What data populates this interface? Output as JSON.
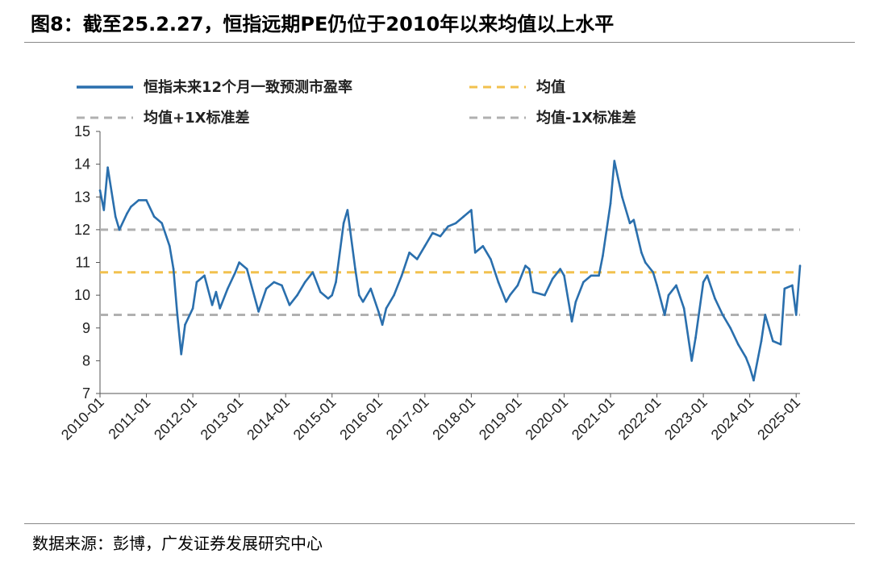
{
  "header": {
    "title": "图8：截至25.2.27，恒指远期PE仍位于2010年以来均值以上水平"
  },
  "footer": {
    "source": "数据来源：彭博，广发证券发展研究中心"
  },
  "colors": {
    "series": "#2a6fad",
    "mean": "#f2c14e",
    "band": "#b0b0b0"
  },
  "chart_data": {
    "type": "line",
    "title": "图8：截至25.2.27，恒指远期PE仍位于2010年以来均值以上水平",
    "xlabel": "",
    "ylabel": "",
    "ylim": [
      7,
      15
    ],
    "yticks": [
      "7",
      "8",
      "9",
      "10",
      "11",
      "12",
      "13",
      "14",
      "15"
    ],
    "xticks": [
      "2010-01",
      "2011-01",
      "2012-01",
      "2013-01",
      "2014-01",
      "2015-01",
      "2016-01",
      "2017-01",
      "2018-01",
      "2019-01",
      "2020-01",
      "2021-01",
      "2022-01",
      "2023-01",
      "2024-01",
      "2025-01"
    ],
    "grid": false,
    "legend": {
      "placement": "top",
      "entries": [
        "恒指未来12个月一致预测市盈率",
        "均值",
        "均值+1X标准差",
        "均值-1X标准差"
      ]
    },
    "series": [
      {
        "name": "恒指未来12个月一致预测市盈率",
        "x": [
          "2010-01",
          "2010-02",
          "2010-03",
          "2010-05",
          "2010-06",
          "2010-08",
          "2010-09",
          "2010-11",
          "2011-01",
          "2011-03",
          "2011-05",
          "2011-07",
          "2011-08",
          "2011-09",
          "2011-10",
          "2011-11",
          "2012-01",
          "2012-02",
          "2012-04",
          "2012-06",
          "2012-07",
          "2012-08",
          "2012-10",
          "2012-12",
          "2013-01",
          "2013-03",
          "2013-06",
          "2013-08",
          "2013-10",
          "2013-12",
          "2014-02",
          "2014-04",
          "2014-06",
          "2014-08",
          "2014-10",
          "2014-12",
          "2015-01",
          "2015-02",
          "2015-04",
          "2015-05",
          "2015-07",
          "2015-08",
          "2015-09",
          "2015-11",
          "2016-01",
          "2016-02",
          "2016-03",
          "2016-05",
          "2016-07",
          "2016-09",
          "2016-11",
          "2017-01",
          "2017-03",
          "2017-05",
          "2017-07",
          "2017-09",
          "2017-11",
          "2018-01",
          "2018-02",
          "2018-04",
          "2018-06",
          "2018-08",
          "2018-10",
          "2018-11",
          "2019-01",
          "2019-03",
          "2019-04",
          "2019-05",
          "2019-08",
          "2019-10",
          "2019-12",
          "2020-01",
          "2020-03",
          "2020-04",
          "2020-06",
          "2020-08",
          "2020-10",
          "2020-11",
          "2021-01",
          "2021-02",
          "2021-04",
          "2021-06",
          "2021-07",
          "2021-09",
          "2021-10",
          "2021-12",
          "2022-01",
          "2022-03",
          "2022-04",
          "2022-06",
          "2022-08",
          "2022-10",
          "2022-11",
          "2023-01",
          "2023-02",
          "2023-04",
          "2023-06",
          "2023-08",
          "2023-10",
          "2023-12",
          "2024-01",
          "2024-02",
          "2024-04",
          "2024-05",
          "2024-07",
          "2024-09",
          "2024-10",
          "2024-12",
          "2025-01",
          "2025-02"
        ],
        "y": [
          13.2,
          12.6,
          13.9,
          12.4,
          12.0,
          12.5,
          12.7,
          12.9,
          12.9,
          12.4,
          12.2,
          11.5,
          10.8,
          9.4,
          8.2,
          9.1,
          9.6,
          10.4,
          10.6,
          9.7,
          10.1,
          9.6,
          10.2,
          10.7,
          11.0,
          10.8,
          9.5,
          10.2,
          10.4,
          10.3,
          9.7,
          10.0,
          10.4,
          10.7,
          10.1,
          9.9,
          10.0,
          10.4,
          12.2,
          12.6,
          10.8,
          10.0,
          9.8,
          10.2,
          9.5,
          9.1,
          9.6,
          10.0,
          10.6,
          11.3,
          11.1,
          11.5,
          11.9,
          11.8,
          12.1,
          12.2,
          12.4,
          12.6,
          11.3,
          11.5,
          11.1,
          10.4,
          9.8,
          10.0,
          10.3,
          10.9,
          10.8,
          10.1,
          10.0,
          10.5,
          10.8,
          10.6,
          9.2,
          9.8,
          10.4,
          10.6,
          10.6,
          11.2,
          12.8,
          14.1,
          13.0,
          12.2,
          12.3,
          11.3,
          11.0,
          10.7,
          10.3,
          9.4,
          10.0,
          10.3,
          9.6,
          8.0,
          8.7,
          10.4,
          10.6,
          9.9,
          9.4,
          9.0,
          8.5,
          8.1,
          7.8,
          7.4,
          8.6,
          9.4,
          8.6,
          8.5,
          10.2,
          10.3,
          9.4,
          10.9
        ]
      },
      {
        "name": "均值",
        "value": 10.7
      },
      {
        "name": "均值+1X标准差",
        "value": 12.0
      },
      {
        "name": "均值-1X标准差",
        "value": 9.4
      }
    ]
  }
}
